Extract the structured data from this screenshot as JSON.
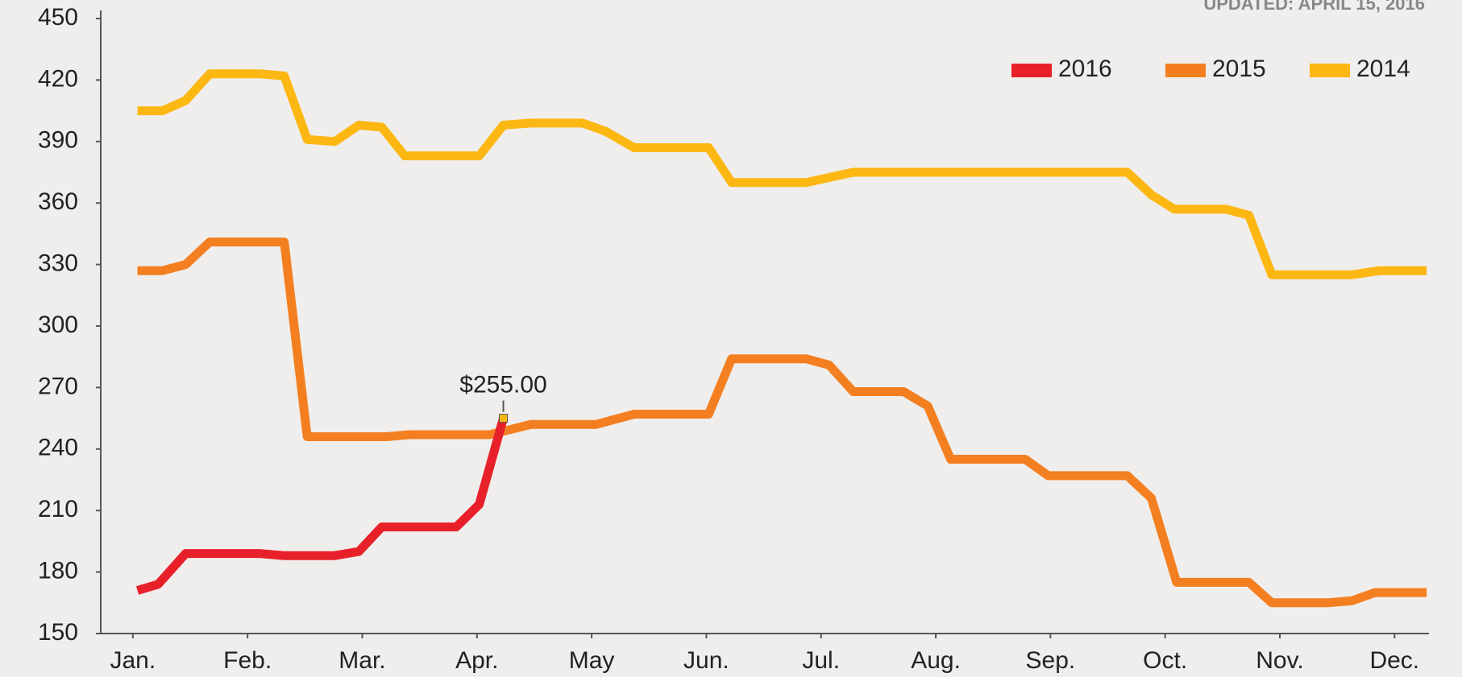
{
  "chart_data": {
    "type": "line",
    "subtitle": "UPDATED: APRIL 15, 2016",
    "xlim": [
      -0.28,
      11.3
    ],
    "xticks": [
      {
        "value": 0,
        "label": "Jan."
      },
      {
        "value": 1,
        "label": "Feb."
      },
      {
        "value": 2,
        "label": "Mar."
      },
      {
        "value": 3,
        "label": "Apr."
      },
      {
        "value": 4,
        "label": "May"
      },
      {
        "value": 5,
        "label": "Jun."
      },
      {
        "value": 6,
        "label": "Jul."
      },
      {
        "value": 7,
        "label": "Aug."
      },
      {
        "value": 8,
        "label": "Sep."
      },
      {
        "value": 9,
        "label": "Oct."
      },
      {
        "value": 10,
        "label": "Nov."
      },
      {
        "value": 11,
        "label": "Dec."
      }
    ],
    "ylim": [
      150,
      450
    ],
    "yticks": [
      150,
      180,
      210,
      240,
      270,
      300,
      330,
      360,
      390,
      420,
      450
    ],
    "grid": false,
    "legend": "top-right",
    "series": [
      {
        "name": "2016",
        "color": "#e8202a",
        "x": [
          0.04,
          0.22,
          0.46,
          1.11,
          1.32,
          1.76,
          1.97,
          2.17,
          2.82,
          3.02,
          3.23
        ],
        "values": [
          171,
          174,
          189,
          189,
          188,
          188,
          190,
          202,
          202,
          213,
          255
        ],
        "value_labels": [
          null,
          null,
          null,
          null,
          null,
          null,
          null,
          null,
          null,
          null,
          "$255.00"
        ]
      },
      {
        "name": "2015",
        "color": "#f47f20",
        "x": [
          0.04,
          0.26,
          0.46,
          0.67,
          1.32,
          1.52,
          2.21,
          2.41,
          3.11,
          3.47,
          4.04,
          4.37,
          5.02,
          5.22,
          5.87,
          6.07,
          6.28,
          6.72,
          6.93,
          7.13,
          7.78,
          7.98,
          8.67,
          8.88,
          9.1,
          9.73,
          9.93,
          10.42,
          10.63,
          10.83,
          11.28
        ],
        "values": [
          327,
          327,
          330,
          341,
          341,
          246,
          246,
          247,
          247,
          252,
          252,
          257,
          257,
          284,
          284,
          281,
          268,
          268,
          261,
          235,
          235,
          227,
          227,
          216,
          175,
          175,
          165,
          165,
          166,
          170,
          170
        ]
      },
      {
        "name": "2014",
        "color": "#fdb713",
        "x": [
          0.04,
          0.26,
          0.46,
          0.67,
          1.11,
          1.32,
          1.52,
          1.76,
          1.97,
          2.17,
          2.37,
          3.02,
          3.23,
          3.47,
          3.92,
          4.12,
          4.37,
          5.02,
          5.22,
          5.87,
          6.28,
          6.97,
          7.78,
          8.67,
          8.88,
          9.08,
          9.53,
          9.73,
          9.93,
          10.63,
          10.87,
          11.28
        ],
        "values": [
          405,
          405,
          410,
          423,
          423,
          422,
          391,
          390,
          398,
          397,
          383,
          383,
          398,
          399,
          399,
          395,
          387,
          387,
          370,
          370,
          375,
          375,
          375,
          375,
          364,
          357,
          357,
          354,
          325,
          325,
          327,
          327
        ]
      }
    ]
  }
}
